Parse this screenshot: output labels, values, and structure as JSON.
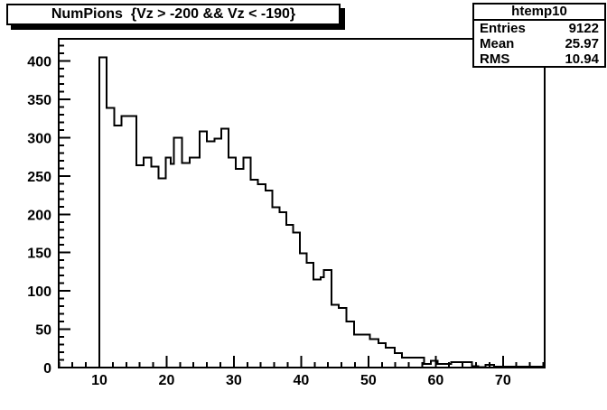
{
  "window": {
    "background": "#ffffff"
  },
  "paves": {
    "title": {
      "text": "NumPions  {Vz > -200 && Vz < -190}"
    },
    "stats": {
      "header": "htemp10",
      "rows": [
        {
          "label": "Entries",
          "value": "9122"
        },
        {
          "label": "Mean",
          "value": "25.97"
        },
        {
          "label": "RMS",
          "value": "10.94"
        }
      ]
    }
  },
  "chart_data": {
    "type": "bar",
    "subtype": "step-histogram",
    "title": "NumPions  {Vz > -200 && Vz < -190}",
    "xlabel": "",
    "ylabel": "",
    "line_color": "#000000",
    "background": "#ffffff",
    "grid": false,
    "legend": false,
    "x_range": [
      3.96,
      76.2
    ],
    "y_range": [
      0,
      429
    ],
    "x_major_ticks": [
      10,
      20,
      30,
      40,
      50,
      60,
      70
    ],
    "x_minor_step": 2,
    "y_major_ticks": [
      0,
      50,
      100,
      150,
      200,
      250,
      300,
      350,
      400
    ],
    "y_minor_step": 10,
    "steps_note": "each entry is [bin_left_edge_x, bin_content]; flat until next entry",
    "steps": [
      [
        10.0,
        405
      ],
      [
        11.1,
        339
      ],
      [
        12.2,
        316
      ],
      [
        13.3,
        328
      ],
      [
        15.5,
        264
      ],
      [
        16.6,
        274
      ],
      [
        17.7,
        262
      ],
      [
        18.8,
        247
      ],
      [
        19.9,
        274
      ],
      [
        20.6,
        266
      ],
      [
        21.1,
        300
      ],
      [
        22.3,
        267
      ],
      [
        23.4,
        274
      ],
      [
        24.9,
        308
      ],
      [
        26.0,
        295
      ],
      [
        27.1,
        299
      ],
      [
        28.1,
        312
      ],
      [
        29.2,
        274
      ],
      [
        30.3,
        259
      ],
      [
        31.4,
        274
      ],
      [
        32.5,
        245
      ],
      [
        33.6,
        239
      ],
      [
        34.7,
        231
      ],
      [
        35.7,
        209
      ],
      [
        36.8,
        203
      ],
      [
        37.8,
        186
      ],
      [
        38.8,
        176
      ],
      [
        39.8,
        149
      ],
      [
        40.8,
        137
      ],
      [
        41.8,
        115
      ],
      [
        42.9,
        118
      ],
      [
        43.4,
        127
      ],
      [
        44.5,
        82
      ],
      [
        45.6,
        78
      ],
      [
        46.7,
        60
      ],
      [
        47.9,
        43
      ],
      [
        50.2,
        37
      ],
      [
        51.5,
        32
      ],
      [
        52.6,
        26
      ],
      [
        53.9,
        19
      ],
      [
        55.0,
        13
      ],
      [
        58.3,
        5
      ],
      [
        59.3,
        9
      ],
      [
        60.3,
        5
      ],
      [
        62.3,
        7
      ],
      [
        65.4,
        2
      ],
      [
        66.3,
        0.5
      ],
      [
        67.4,
        3.5
      ],
      [
        68.7,
        1
      ]
    ],
    "x_end": 76.2
  }
}
